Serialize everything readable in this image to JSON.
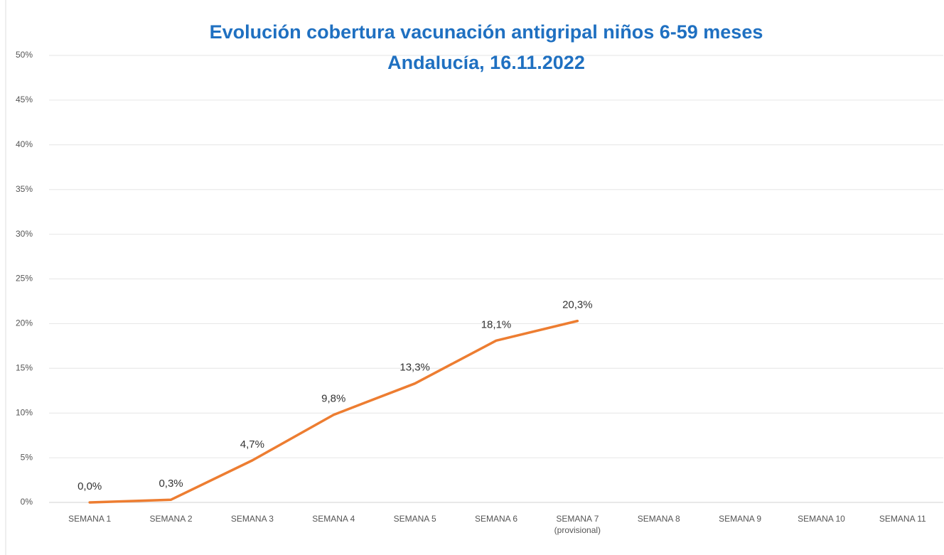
{
  "chart_data": {
    "type": "line",
    "title": "Evolución cobertura vacunación antigripal niños 6-59 meses",
    "subtitle": "Andalucía, 16.11.2022",
    "categories": [
      "SEMANA 1",
      "SEMANA 2",
      "SEMANA 3",
      "SEMANA 4",
      "SEMANA 5",
      "SEMANA 6",
      "SEMANA 7 (provisional)",
      "SEMANA 8",
      "SEMANA 9",
      "SEMANA 10",
      "SEMANA 11"
    ],
    "series": [
      {
        "color": "#ed7d31",
        "values": [
          0.0,
          0.3,
          4.7,
          9.8,
          13.3,
          18.1,
          20.3,
          null,
          null,
          null,
          null
        ],
        "value_labels": [
          "0,0%",
          "0,3%",
          "4,7%",
          "9,8%",
          "13,3%",
          "18,1%",
          "20,3%",
          null,
          null,
          null,
          null
        ]
      }
    ],
    "ylim": [
      0,
      50
    ],
    "yticks": [
      {
        "value": 0,
        "label": "0%"
      },
      {
        "value": 5,
        "label": "5%"
      },
      {
        "value": 10,
        "label": "10%"
      },
      {
        "value": 15,
        "label": "15%"
      },
      {
        "value": 20,
        "label": "20%"
      },
      {
        "value": 25,
        "label": "25%"
      },
      {
        "value": 30,
        "label": "30%"
      },
      {
        "value": 35,
        "label": "35%"
      },
      {
        "value": 40,
        "label": "40%"
      },
      {
        "value": 45,
        "label": "45%"
      },
      {
        "value": 50,
        "label": "50%"
      }
    ],
    "grid": true
  }
}
